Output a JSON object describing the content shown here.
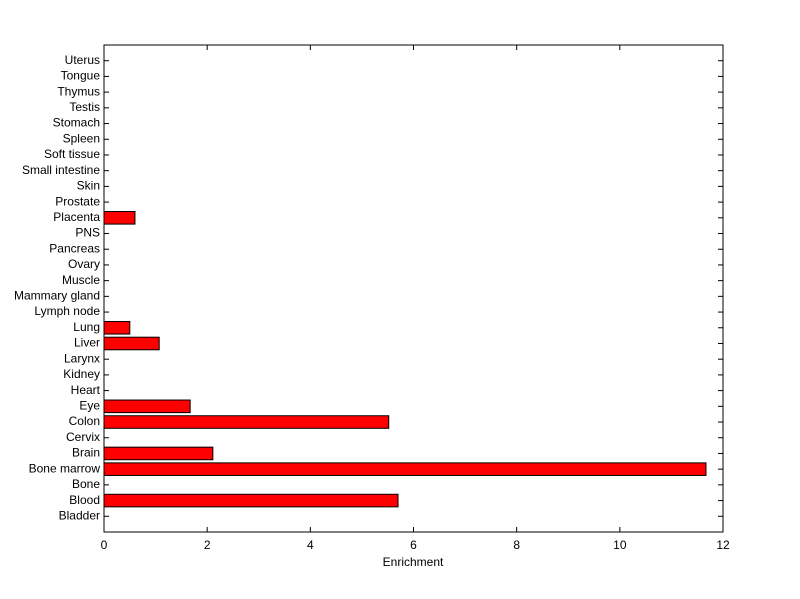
{
  "chart_data": {
    "type": "barh",
    "x_label": "Enrichment",
    "categories": [
      "Bladder",
      "Blood",
      "Bone",
      "Bone marrow",
      "Brain",
      "Cervix",
      "Colon",
      "Eye",
      "Heart",
      "Kidney",
      "Larynx",
      "Liver",
      "Lung",
      "Lymph node",
      "Mammary gland",
      "Muscle",
      "Ovary",
      "Pancreas",
      "PNS",
      "Placenta",
      "Prostate",
      "Skin",
      "Small intestine",
      "Soft tissue",
      "Spleen",
      "Stomach",
      "Testis",
      "Thymus",
      "Tongue",
      "Uterus"
    ],
    "values": [
      0,
      5.7,
      0,
      11.67,
      2.11,
      0,
      5.52,
      1.67,
      0,
      0,
      0,
      1.07,
      0.5,
      0,
      0,
      0,
      0,
      0,
      0,
      0.6,
      0,
      0,
      0,
      0,
      0,
      0,
      0,
      0,
      0,
      0
    ],
    "color": "#ff0000",
    "xlim": [
      0,
      12
    ],
    "xticks": [
      0,
      2,
      4,
      6,
      8,
      10,
      12
    ]
  }
}
